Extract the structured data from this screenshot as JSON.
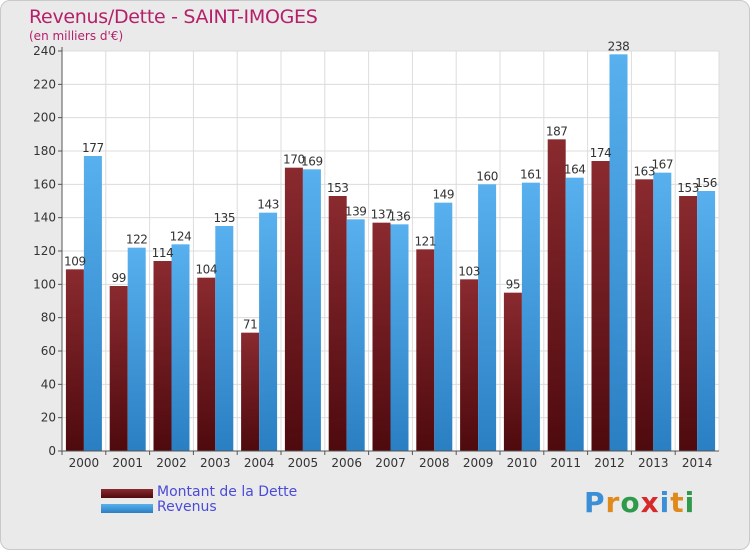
{
  "chart_data": {
    "type": "bar",
    "title": "Revenus/Dette - SAINT-IMOGES",
    "subtitle": "(en milliers d'€)",
    "categories": [
      "2000",
      "2001",
      "2002",
      "2003",
      "2004",
      "2005",
      "2006",
      "2007",
      "2008",
      "2009",
      "2010",
      "2011",
      "2012",
      "2013",
      "2014"
    ],
    "series": [
      {
        "name": "Montant de la Dette",
        "color": "#7a1a20",
        "values": [
          109,
          99,
          114,
          104,
          71,
          170,
          153,
          137,
          121,
          103,
          95,
          187,
          174,
          163,
          153
        ]
      },
      {
        "name": "Revenus",
        "color": "#3f9be0",
        "values": [
          177,
          122,
          124,
          135,
          143,
          169,
          139,
          136,
          149,
          160,
          161,
          164,
          238,
          167,
          156
        ]
      }
    ],
    "ylim": [
      0,
      240
    ],
    "yticks": [
      0,
      20,
      40,
      60,
      80,
      100,
      120,
      140,
      160,
      180,
      200,
      220,
      240
    ],
    "grid": true,
    "legend_position": "bottom-left"
  },
  "logo": {
    "text": "Proxiti"
  }
}
